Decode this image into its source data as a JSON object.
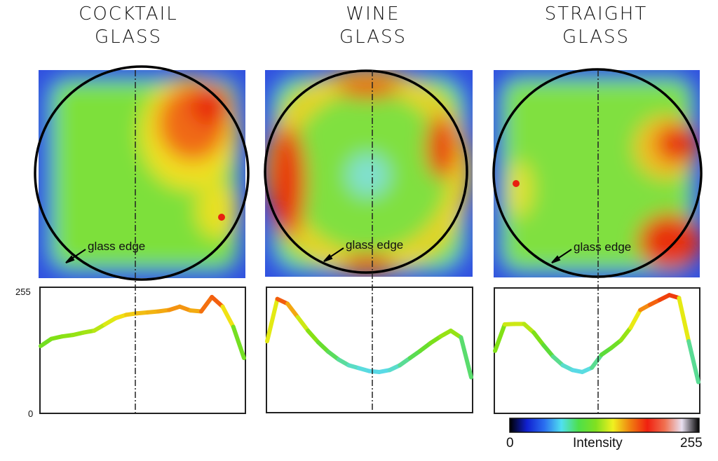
{
  "chart_data": [
    {
      "type": "heatmap+line",
      "title_line1": "COCKTAIL",
      "title_line2": "GLASS",
      "annotation": "glass edge",
      "ylim": [
        0,
        255
      ],
      "yticks": [
        "255",
        "0"
      ],
      "profile": [
        140,
        155,
        160,
        163,
        168,
        172,
        185,
        198,
        205,
        208,
        210,
        212,
        215,
        222,
        214,
        212,
        242,
        222,
        180,
        115
      ]
    },
    {
      "type": "heatmap+line",
      "title_line1": "WINE",
      "title_line2": "GLASS",
      "annotation": "glass edge",
      "ylim": [
        0,
        255
      ],
      "profile": [
        150,
        238,
        228,
        200,
        172,
        148,
        128,
        112,
        100,
        94,
        88,
        86,
        90,
        100,
        115,
        130,
        146,
        160,
        172,
        158,
        75
      ]
    },
    {
      "type": "heatmap+line",
      "title_line1": "STRAIGHT",
      "title_line2": "GLASS",
      "annotation": "glass edge",
      "ylim": [
        0,
        255
      ],
      "profile": [
        130,
        185,
        186,
        186,
        168,
        142,
        118,
        100,
        90,
        86,
        95,
        122,
        136,
        152,
        178,
        215,
        226,
        236,
        246,
        240,
        150,
        65
      ]
    }
  ],
  "colorbar": {
    "min_label": "0",
    "label": "Intensity",
    "max_label": "255",
    "colors": [
      "#000000",
      "#1020d0",
      "#2a6ef0",
      "#50e0f0",
      "#4ee04a",
      "#80e020",
      "#f0f020",
      "#f08010",
      "#f02010",
      "#f07050",
      "#e8e0f0",
      "#000000"
    ]
  }
}
